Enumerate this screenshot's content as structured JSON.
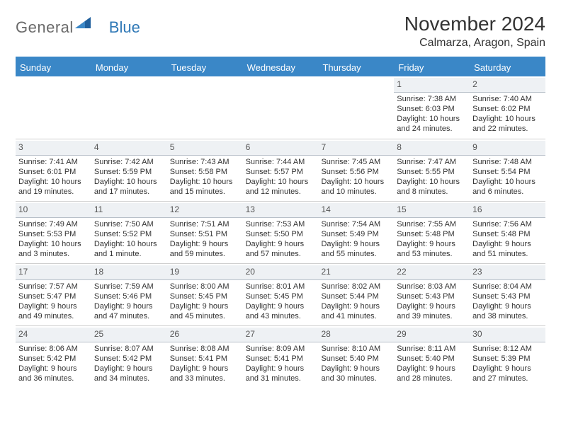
{
  "logo": {
    "text1": "General",
    "text2": "Blue"
  },
  "title": "November 2024",
  "location": "Calmarza, Aragon, Spain",
  "colors": {
    "header_bg": "#3a87c7",
    "header_text": "#ffffff",
    "daynum_bg": "#eef1f4",
    "daynum_border": "#b8c0c9",
    "cell_border": "#cfcfcf",
    "text": "#333333",
    "logo_gray": "#6a6a6a",
    "logo_blue": "#2f78b6",
    "page_bg": "#ffffff"
  },
  "day_names": [
    "Sunday",
    "Monday",
    "Tuesday",
    "Wednesday",
    "Thursday",
    "Friday",
    "Saturday"
  ],
  "weeks": [
    [
      {
        "day": "",
        "sunrise": "",
        "sunset": "",
        "daylight": ""
      },
      {
        "day": "",
        "sunrise": "",
        "sunset": "",
        "daylight": ""
      },
      {
        "day": "",
        "sunrise": "",
        "sunset": "",
        "daylight": ""
      },
      {
        "day": "",
        "sunrise": "",
        "sunset": "",
        "daylight": ""
      },
      {
        "day": "",
        "sunrise": "",
        "sunset": "",
        "daylight": ""
      },
      {
        "day": "1",
        "sunrise": "Sunrise: 7:38 AM",
        "sunset": "Sunset: 6:03 PM",
        "daylight": "Daylight: 10 hours and 24 minutes."
      },
      {
        "day": "2",
        "sunrise": "Sunrise: 7:40 AM",
        "sunset": "Sunset: 6:02 PM",
        "daylight": "Daylight: 10 hours and 22 minutes."
      }
    ],
    [
      {
        "day": "3",
        "sunrise": "Sunrise: 7:41 AM",
        "sunset": "Sunset: 6:01 PM",
        "daylight": "Daylight: 10 hours and 19 minutes."
      },
      {
        "day": "4",
        "sunrise": "Sunrise: 7:42 AM",
        "sunset": "Sunset: 5:59 PM",
        "daylight": "Daylight: 10 hours and 17 minutes."
      },
      {
        "day": "5",
        "sunrise": "Sunrise: 7:43 AM",
        "sunset": "Sunset: 5:58 PM",
        "daylight": "Daylight: 10 hours and 15 minutes."
      },
      {
        "day": "6",
        "sunrise": "Sunrise: 7:44 AM",
        "sunset": "Sunset: 5:57 PM",
        "daylight": "Daylight: 10 hours and 12 minutes."
      },
      {
        "day": "7",
        "sunrise": "Sunrise: 7:45 AM",
        "sunset": "Sunset: 5:56 PM",
        "daylight": "Daylight: 10 hours and 10 minutes."
      },
      {
        "day": "8",
        "sunrise": "Sunrise: 7:47 AM",
        "sunset": "Sunset: 5:55 PM",
        "daylight": "Daylight: 10 hours and 8 minutes."
      },
      {
        "day": "9",
        "sunrise": "Sunrise: 7:48 AM",
        "sunset": "Sunset: 5:54 PM",
        "daylight": "Daylight: 10 hours and 6 minutes."
      }
    ],
    [
      {
        "day": "10",
        "sunrise": "Sunrise: 7:49 AM",
        "sunset": "Sunset: 5:53 PM",
        "daylight": "Daylight: 10 hours and 3 minutes."
      },
      {
        "day": "11",
        "sunrise": "Sunrise: 7:50 AM",
        "sunset": "Sunset: 5:52 PM",
        "daylight": "Daylight: 10 hours and 1 minute."
      },
      {
        "day": "12",
        "sunrise": "Sunrise: 7:51 AM",
        "sunset": "Sunset: 5:51 PM",
        "daylight": "Daylight: 9 hours and 59 minutes."
      },
      {
        "day": "13",
        "sunrise": "Sunrise: 7:53 AM",
        "sunset": "Sunset: 5:50 PM",
        "daylight": "Daylight: 9 hours and 57 minutes."
      },
      {
        "day": "14",
        "sunrise": "Sunrise: 7:54 AM",
        "sunset": "Sunset: 5:49 PM",
        "daylight": "Daylight: 9 hours and 55 minutes."
      },
      {
        "day": "15",
        "sunrise": "Sunrise: 7:55 AM",
        "sunset": "Sunset: 5:48 PM",
        "daylight": "Daylight: 9 hours and 53 minutes."
      },
      {
        "day": "16",
        "sunrise": "Sunrise: 7:56 AM",
        "sunset": "Sunset: 5:48 PM",
        "daylight": "Daylight: 9 hours and 51 minutes."
      }
    ],
    [
      {
        "day": "17",
        "sunrise": "Sunrise: 7:57 AM",
        "sunset": "Sunset: 5:47 PM",
        "daylight": "Daylight: 9 hours and 49 minutes."
      },
      {
        "day": "18",
        "sunrise": "Sunrise: 7:59 AM",
        "sunset": "Sunset: 5:46 PM",
        "daylight": "Daylight: 9 hours and 47 minutes."
      },
      {
        "day": "19",
        "sunrise": "Sunrise: 8:00 AM",
        "sunset": "Sunset: 5:45 PM",
        "daylight": "Daylight: 9 hours and 45 minutes."
      },
      {
        "day": "20",
        "sunrise": "Sunrise: 8:01 AM",
        "sunset": "Sunset: 5:45 PM",
        "daylight": "Daylight: 9 hours and 43 minutes."
      },
      {
        "day": "21",
        "sunrise": "Sunrise: 8:02 AM",
        "sunset": "Sunset: 5:44 PM",
        "daylight": "Daylight: 9 hours and 41 minutes."
      },
      {
        "day": "22",
        "sunrise": "Sunrise: 8:03 AM",
        "sunset": "Sunset: 5:43 PM",
        "daylight": "Daylight: 9 hours and 39 minutes."
      },
      {
        "day": "23",
        "sunrise": "Sunrise: 8:04 AM",
        "sunset": "Sunset: 5:43 PM",
        "daylight": "Daylight: 9 hours and 38 minutes."
      }
    ],
    [
      {
        "day": "24",
        "sunrise": "Sunrise: 8:06 AM",
        "sunset": "Sunset: 5:42 PM",
        "daylight": "Daylight: 9 hours and 36 minutes."
      },
      {
        "day": "25",
        "sunrise": "Sunrise: 8:07 AM",
        "sunset": "Sunset: 5:42 PM",
        "daylight": "Daylight: 9 hours and 34 minutes."
      },
      {
        "day": "26",
        "sunrise": "Sunrise: 8:08 AM",
        "sunset": "Sunset: 5:41 PM",
        "daylight": "Daylight: 9 hours and 33 minutes."
      },
      {
        "day": "27",
        "sunrise": "Sunrise: 8:09 AM",
        "sunset": "Sunset: 5:41 PM",
        "daylight": "Daylight: 9 hours and 31 minutes."
      },
      {
        "day": "28",
        "sunrise": "Sunrise: 8:10 AM",
        "sunset": "Sunset: 5:40 PM",
        "daylight": "Daylight: 9 hours and 30 minutes."
      },
      {
        "day": "29",
        "sunrise": "Sunrise: 8:11 AM",
        "sunset": "Sunset: 5:40 PM",
        "daylight": "Daylight: 9 hours and 28 minutes."
      },
      {
        "day": "30",
        "sunrise": "Sunrise: 8:12 AM",
        "sunset": "Sunset: 5:39 PM",
        "daylight": "Daylight: 9 hours and 27 minutes."
      }
    ]
  ]
}
